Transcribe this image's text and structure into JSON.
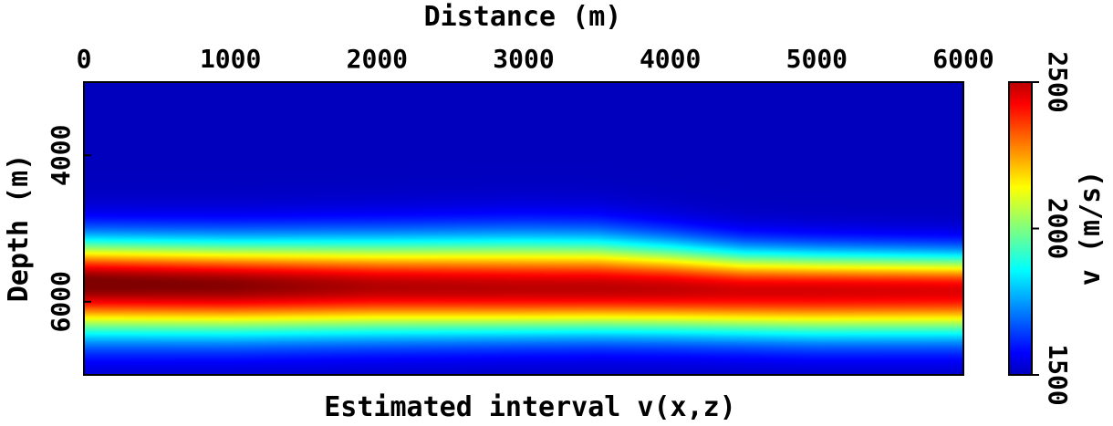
{
  "chart_data": {
    "type": "heatmap",
    "title": "Estimated interval v(x,z)",
    "xlabel": "Distance (m)",
    "ylabel": "Depth (m)",
    "xlim": [
      0,
      6000
    ],
    "ylim": [
      3000,
      7000
    ],
    "y_inverted": true,
    "x_ticks": [
      "0",
      "1000",
      "2000",
      "3000",
      "4000",
      "5000",
      "6000"
    ],
    "y_ticks": [
      "4000",
      "6000"
    ],
    "colorbar": {
      "label": "v (m/s)",
      "range": [
        1500,
        2500
      ],
      "ticks": [
        "1500",
        "2000",
        "2500"
      ],
      "colormap": "jet"
    },
    "layer_profile": {
      "x": [
        0,
        1000,
        2000,
        3000,
        3500,
        4000,
        4500,
        5000,
        6000
      ],
      "top_depth": [
        4500,
        4500,
        4450,
        4400,
        4420,
        4550,
        4700,
        4750,
        4800
      ],
      "peak_depth": [
        5750,
        5780,
        5800,
        5820,
        5820,
        5830,
        5850,
        5850,
        5850
      ],
      "base_depth": [
        6800,
        6800,
        6780,
        6760,
        6750,
        6760,
        6780,
        6800,
        6800
      ],
      "peak_velocity": [
        2580,
        2560,
        2510,
        2500,
        2500,
        2490,
        2470,
        2470,
        2460
      ],
      "background_velocity": 1500
    }
  }
}
